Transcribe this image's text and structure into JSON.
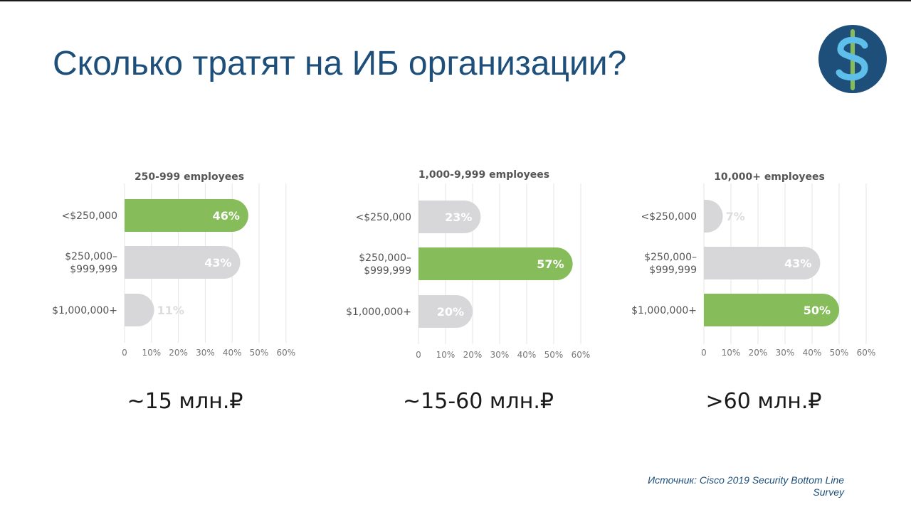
{
  "title": "Сколько тратят на ИБ организации?",
  "logo_icon": "dollar-sign-icon",
  "colors": {
    "title": "#1d4f7a",
    "highlight_bar": "#86bc5a",
    "other_bar": "#d7d7d9",
    "logo_circle": "#1d4f7a",
    "logo_stroke": "#5ec0ea",
    "logo_line": "#86bc5a",
    "grid": "#e6e6e6"
  },
  "source": {
    "line1": "Источник: Cisco 2019 Security Bottom Line",
    "line2": "Survey"
  },
  "chart_data": [
    {
      "type": "bar",
      "orientation": "horizontal",
      "title": "250-999 employees",
      "categories": [
        "<$250,000",
        "$250,000–\n$999,999",
        "$1,000,000+"
      ],
      "values": [
        46,
        43,
        11
      ],
      "value_labels": [
        "46%",
        "43%",
        "11%"
      ],
      "highlight_index": 0,
      "xlim": [
        0,
        60
      ],
      "xticks": [
        "0",
        "10%",
        "20%",
        "30%",
        "40%",
        "50%",
        "60%"
      ],
      "grid": true,
      "caption": "~15 млн.₽"
    },
    {
      "type": "bar",
      "orientation": "horizontal",
      "title": "1,000-9,999 employees",
      "categories": [
        "<$250,000",
        "$250,000–\n$999,999",
        "$1,000,000+"
      ],
      "values": [
        23,
        57,
        20
      ],
      "value_labels": [
        "23%",
        "57%",
        "20%"
      ],
      "highlight_index": 1,
      "xlim": [
        0,
        60
      ],
      "xticks": [
        "0",
        "10%",
        "20%",
        "30%",
        "40%",
        "50%",
        "60%"
      ],
      "grid": true,
      "caption": "~15-60 млн.₽"
    },
    {
      "type": "bar",
      "orientation": "horizontal",
      "title": "10,000+  employees",
      "categories": [
        "<$250,000",
        "$250,000–\n$999,999",
        "$1,000,000+"
      ],
      "values": [
        7,
        43,
        50
      ],
      "value_labels": [
        "7%",
        "43%",
        "50%"
      ],
      "highlight_index": 2,
      "xlim": [
        0,
        60
      ],
      "xticks": [
        "0",
        "10%",
        "20%",
        "30%",
        "40%",
        "50%",
        "60%"
      ],
      "grid": true,
      "caption": ">60 млн.₽"
    }
  ]
}
